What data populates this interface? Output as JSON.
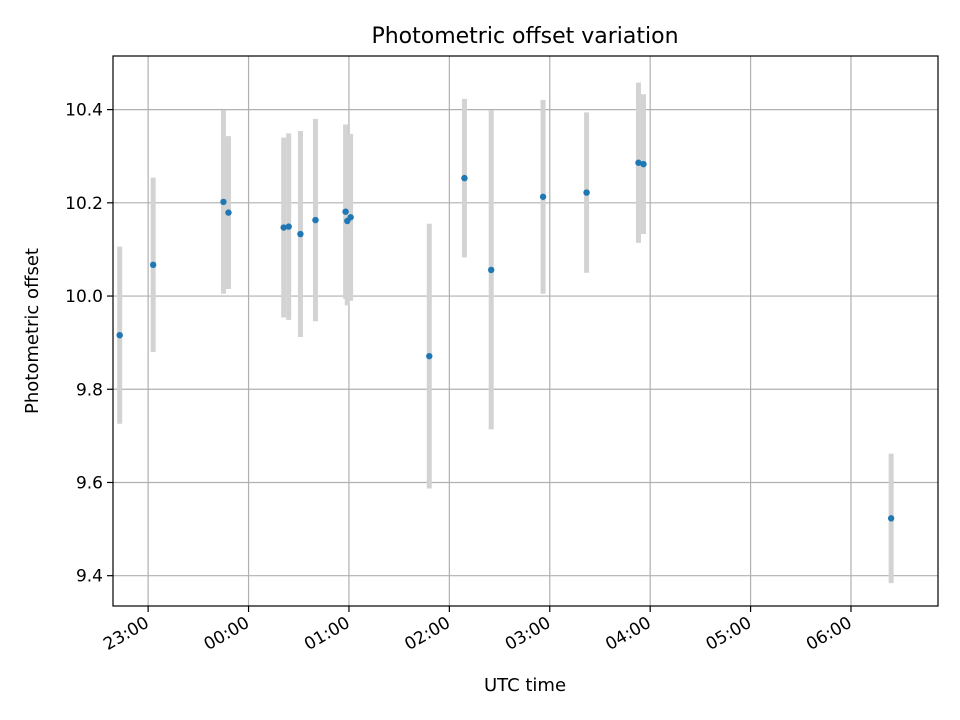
{
  "chart_data": {
    "type": "scatter",
    "title": "Photometric offset variation",
    "xlabel": "UTC time",
    "ylabel": "Photometric offset",
    "x_axis_type": "time",
    "xlim": [
      "22:39",
      "06:52"
    ],
    "ylim": [
      9.335,
      10.515
    ],
    "x_ticks": [
      "23:00",
      "00:00",
      "01:00",
      "02:00",
      "03:00",
      "04:00",
      "05:00",
      "06:00"
    ],
    "y_ticks": [
      9.4,
      9.6,
      9.8,
      10.0,
      10.2,
      10.4
    ],
    "grid": true,
    "point_color": "#1f77b4",
    "errorbar_color": "#d3d3d3",
    "points": [
      {
        "t": "22:43",
        "y": 9.916,
        "err": 0.19
      },
      {
        "t": "23:03",
        "y": 10.067,
        "err": 0.187
      },
      {
        "t": "23:45",
        "y": 10.202,
        "err": 0.197
      },
      {
        "t": "23:48",
        "y": 10.179,
        "err": 0.164
      },
      {
        "t": "00:21",
        "y": 10.147,
        "err": 0.193
      },
      {
        "t": "00:24",
        "y": 10.149,
        "err": 0.2
      },
      {
        "t": "00:31",
        "y": 10.133,
        "err": 0.221
      },
      {
        "t": "00:40",
        "y": 10.163,
        "err": 0.217
      },
      {
        "t": "00:58",
        "y": 10.181,
        "err": 0.187
      },
      {
        "t": "00:59",
        "y": 10.161,
        "err": 0.181
      },
      {
        "t": "01:01",
        "y": 10.169,
        "err": 0.179
      },
      {
        "t": "01:48",
        "y": 9.871,
        "err": 0.284
      },
      {
        "t": "02:09",
        "y": 10.253,
        "err": 0.17
      },
      {
        "t": "02:25",
        "y": 10.056,
        "err": 0.342
      },
      {
        "t": "02:56",
        "y": 10.213,
        "err": 0.208
      },
      {
        "t": "03:22",
        "y": 10.222,
        "err": 0.172
      },
      {
        "t": "03:53",
        "y": 10.286,
        "err": 0.172
      },
      {
        "t": "03:56",
        "y": 10.283,
        "err": 0.15
      },
      {
        "t": "06:24",
        "y": 9.523,
        "err": 0.139
      }
    ]
  }
}
